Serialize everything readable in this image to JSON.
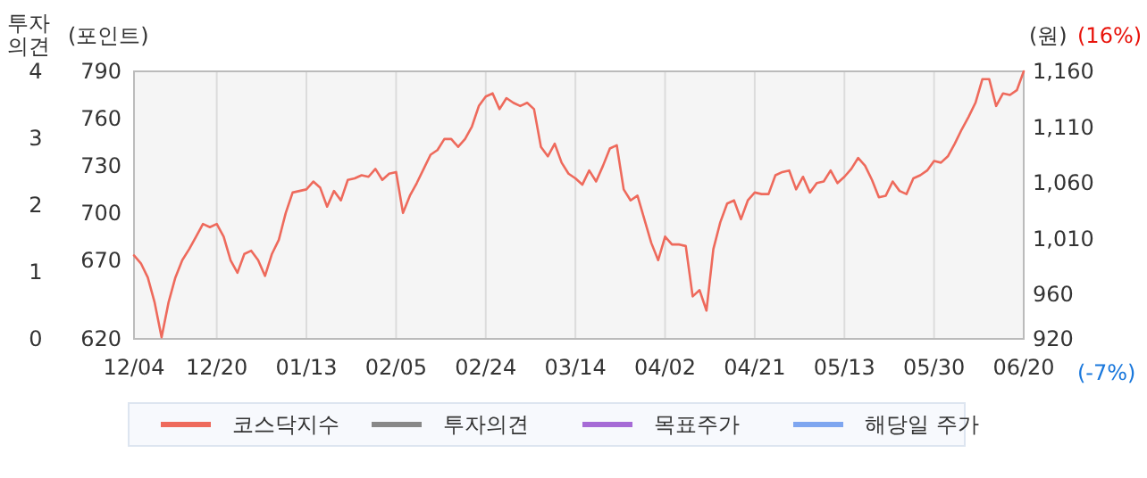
{
  "chart_data": {
    "type": "line",
    "ylabel": "(포인트)",
    "y2label": "(원)",
    "y3label": "투자의견",
    "annotations": [
      "(16%)",
      "(-7%)"
    ],
    "categories": [
      "12/04",
      null,
      null,
      null,
      null,
      null,
      null,
      null,
      null,
      null,
      null,
      null,
      "12/20",
      null,
      null,
      null,
      null,
      null,
      null,
      null,
      null,
      null,
      null,
      null,
      null,
      "01/13",
      null,
      null,
      null,
      null,
      null,
      null,
      null,
      null,
      null,
      null,
      null,
      null,
      "02/05",
      null,
      null,
      null,
      null,
      null,
      null,
      null,
      null,
      null,
      null,
      null,
      null,
      "02/24",
      null,
      null,
      null,
      null,
      null,
      null,
      null,
      null,
      null,
      null,
      null,
      null,
      "03/14",
      null,
      null,
      null,
      null,
      null,
      null,
      null,
      null,
      null,
      null,
      null,
      null,
      "04/02",
      null,
      null,
      null,
      null,
      null,
      null,
      null,
      null,
      null,
      null,
      null,
      null,
      "04/21",
      null,
      null,
      null,
      null,
      null,
      null,
      null,
      null,
      null,
      null,
      null,
      null,
      "05/13",
      null,
      null,
      null,
      null,
      null,
      null,
      null,
      null,
      null,
      null,
      null,
      null,
      "05/30",
      null,
      null,
      null,
      null,
      null,
      null,
      null,
      null,
      null,
      null,
      null,
      null,
      "06/20"
    ],
    "series": [
      {
        "name": "코스닥지수",
        "color": "#ee6a5c",
        "axis": "y",
        "values": [
          673,
          668,
          659,
          643,
          621,
          643,
          659,
          670,
          677,
          685,
          693,
          691,
          693,
          685,
          670,
          662,
          674,
          676,
          670,
          660,
          674,
          683,
          700,
          713,
          714,
          715,
          720,
          716,
          704,
          714,
          708,
          721,
          722,
          724,
          723,
          728,
          721,
          725,
          726,
          700,
          711,
          719,
          728,
          737,
          740,
          747,
          747,
          742,
          747,
          755,
          768,
          774,
          776,
          766,
          773,
          770,
          768,
          770,
          766,
          742,
          736,
          744,
          732,
          725,
          722,
          718,
          727,
          720,
          730,
          741,
          743,
          715,
          708,
          711,
          696,
          681,
          670,
          685,
          680,
          680,
          679,
          647,
          651,
          638,
          677,
          694,
          706,
          708,
          696,
          708,
          713,
          712,
          712,
          724,
          726,
          727,
          715,
          723,
          713,
          719,
          720,
          727,
          719,
          723,
          728,
          735,
          730,
          721,
          710,
          711,
          720,
          714,
          712,
          722,
          724,
          727,
          733,
          732,
          736,
          744,
          753,
          761,
          770,
          785,
          785,
          768,
          776,
          775,
          778,
          790
        ]
      },
      {
        "name": "투자의견",
        "color": "#888888",
        "axis": "y3",
        "values": [
          null,
          null,
          null,
          null,
          null,
          null,
          null,
          null,
          null,
          null,
          null,
          null,
          null,
          null,
          null,
          null,
          null,
          null,
          null,
          null,
          null,
          null,
          null,
          null,
          null,
          null,
          null,
          null,
          null,
          null,
          null,
          null,
          null,
          null,
          null,
          null,
          null,
          null,
          null,
          null,
          null,
          null,
          null,
          null,
          null,
          null,
          null,
          null,
          null,
          null,
          null,
          null,
          null,
          null,
          null,
          null,
          null,
          null,
          null,
          null,
          null,
          null,
          null,
          null,
          null,
          null,
          null,
          null,
          null,
          null,
          null,
          null,
          null,
          null,
          null,
          null,
          null,
          null,
          null,
          null,
          null,
          null,
          null,
          null,
          null,
          null,
          null,
          null,
          null,
          null,
          null,
          null,
          null,
          null,
          null,
          null,
          null,
          null,
          null,
          null,
          null,
          null,
          null,
          null,
          null,
          null,
          null,
          null,
          null,
          null,
          null,
          null,
          null,
          null,
          null,
          null,
          null,
          null,
          null,
          null,
          null,
          null,
          null,
          null,
          null,
          null,
          null,
          null,
          null,
          null
        ]
      },
      {
        "name": "목표주가",
        "color": "#a66bd6",
        "axis": "y2",
        "values": [
          null,
          null,
          null,
          null,
          null,
          null,
          null,
          null,
          null,
          null,
          null,
          null,
          null,
          null,
          null,
          null,
          null,
          null,
          null,
          null,
          null,
          null,
          null,
          null,
          null,
          null,
          null,
          null,
          null,
          null,
          null,
          null,
          null,
          null,
          null,
          null,
          null,
          null,
          null,
          null,
          null,
          null,
          null,
          null,
          null,
          null,
          null,
          null,
          null,
          null,
          null,
          null,
          null,
          null,
          null,
          null,
          null,
          null,
          null,
          null,
          null,
          null,
          null,
          null,
          null,
          null,
          null,
          null,
          null,
          null,
          null,
          null,
          null,
          null,
          null,
          null,
          null,
          null,
          null,
          null,
          null,
          null,
          null,
          null,
          null,
          null,
          null,
          null,
          null,
          null,
          null,
          null,
          null,
          null,
          null,
          null,
          null,
          null,
          null,
          null,
          null,
          null,
          null,
          null,
          null,
          null,
          null,
          null,
          null,
          null,
          null,
          null,
          null,
          null,
          null,
          null,
          null,
          null,
          null,
          null,
          null,
          null,
          null,
          null,
          null,
          null,
          null,
          null,
          null,
          null
        ]
      },
      {
        "name": "해당일 주가",
        "color": "#7ea6f0",
        "axis": "y2",
        "values": [
          null,
          null,
          null,
          null,
          null,
          null,
          null,
          null,
          null,
          null,
          null,
          null,
          null,
          null,
          null,
          null,
          null,
          null,
          null,
          null,
          null,
          null,
          null,
          null,
          null,
          null,
          null,
          null,
          null,
          null,
          null,
          null,
          null,
          null,
          null,
          null,
          null,
          null,
          null,
          null,
          null,
          null,
          null,
          null,
          null,
          null,
          null,
          null,
          null,
          null,
          null,
          null,
          null,
          null,
          null,
          null,
          null,
          null,
          null,
          null,
          null,
          null,
          null,
          null,
          null,
          null,
          null,
          null,
          null,
          null,
          null,
          null,
          null,
          null,
          null,
          null,
          null,
          null,
          null,
          null,
          null,
          null,
          null,
          null,
          null,
          null,
          null,
          null,
          null,
          null,
          null,
          null,
          null,
          null,
          null,
          null,
          null,
          null,
          null,
          null,
          null,
          null,
          null,
          null,
          null,
          null,
          null,
          null,
          null,
          null,
          null,
          null,
          null,
          null,
          null,
          null,
          null,
          null,
          null,
          null,
          null,
          null,
          null,
          null,
          null,
          null,
          null,
          null,
          null,
          null
        ]
      }
    ],
    "ylim": [
      620,
      790
    ],
    "yticks": [
      620,
      670,
      700,
      730,
      760,
      790
    ],
    "y2lim": [
      920,
      1160
    ],
    "y2ticks": [
      920,
      960,
      {
        "value": 1010,
        "label": "1,010"
      },
      {
        "value": 1060,
        "label": "1,060"
      },
      {
        "value": 1110,
        "label": "1,110"
      },
      {
        "value": 1160,
        "label": "1,160"
      }
    ],
    "y3lim": [
      0,
      4
    ],
    "y3ticks": [
      0,
      1,
      2,
      3,
      4
    ],
    "grid": "x",
    "legend": "bottom"
  }
}
